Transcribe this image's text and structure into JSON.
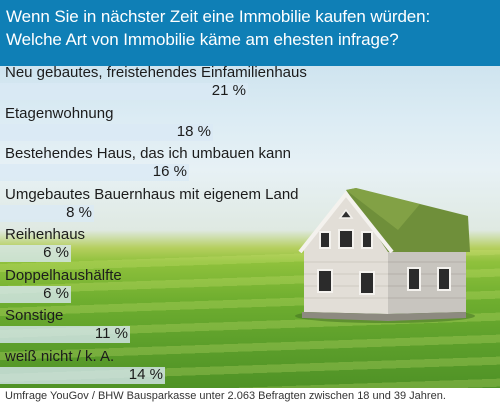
{
  "title": {
    "line1": "Wenn Sie in nächster Zeit eine Immobilie kaufen würden:",
    "line2": "Welche Art von Immobilie käme am ehesten infrage?"
  },
  "chart_data": {
    "type": "bar",
    "orientation": "horizontal",
    "categories": [
      "Neu gebautes, freistehendes Einfamilienhaus",
      "Etagenwohnung",
      "Bestehendes Haus, das ich umbauen kann",
      "Umgebautes Bauernhaus mit eigenem Land",
      "Reihenhaus",
      "Doppelhaushälfte",
      "Sonstige",
      "weiß nicht / k. A."
    ],
    "values": [
      21,
      18,
      16,
      8,
      6,
      6,
      11,
      14
    ],
    "value_labels": [
      "21 %",
      "18 %",
      "16 %",
      "8 %",
      "6 %",
      "6 %",
      "11 %",
      "14 %"
    ],
    "unit": "%",
    "xlim": [
      0,
      21
    ]
  },
  "source": "Umfrage YouGov / BHW Bausparkasse unter 2.063 Befragten zwischen 18 und 39 Jahren.",
  "colors": {
    "title_band": "#0f7fb6",
    "bar_fill": "#dae9f5"
  },
  "illustration": "house-with-grass-roof"
}
